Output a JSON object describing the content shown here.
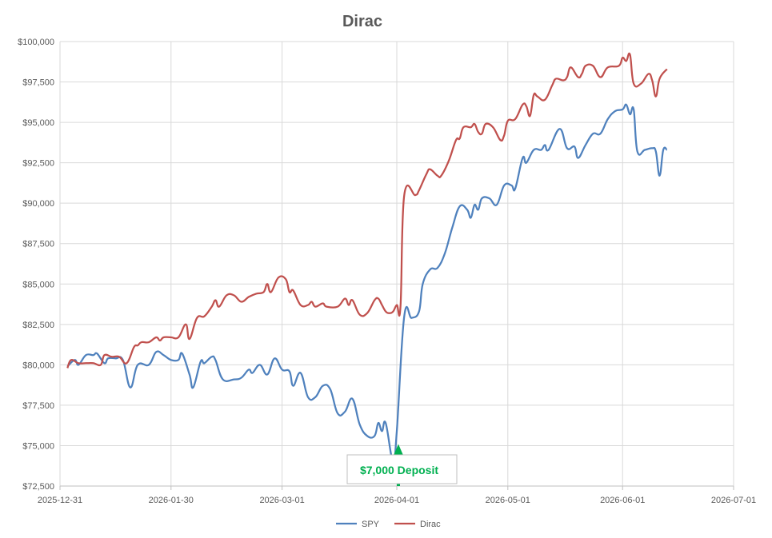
{
  "chart_data": {
    "type": "line",
    "title": "Dirac",
    "xlabel": "",
    "ylabel": "",
    "xlim": [
      "2025-12-31",
      "2026-07-01"
    ],
    "ylim": [
      72500,
      100000
    ],
    "grid": true,
    "legend": "bottom",
    "x_ticks": [
      "2025-12-31",
      "2026-01-30",
      "2026-03-01",
      "2026-04-01",
      "2026-05-01",
      "2026-06-01",
      "2026-07-01"
    ],
    "y_ticks": [
      "$72,500",
      "$75,000",
      "$77,500",
      "$80,000",
      "$82,500",
      "$85,000",
      "$87,500",
      "$90,000",
      "$92,500",
      "$95,000",
      "$97,500",
      "$100,000"
    ],
    "y_tick_values": [
      72500,
      75000,
      77500,
      80000,
      82500,
      85000,
      87500,
      90000,
      92500,
      95000,
      97500,
      100000
    ],
    "series": [
      {
        "name": "SPY",
        "color": "#4f81bd",
        "points": [
          [
            "2026-01-02",
            79900
          ],
          [
            "2026-01-04",
            80300
          ],
          [
            "2026-01-05",
            80000
          ],
          [
            "2026-01-07",
            80600
          ],
          [
            "2026-01-09",
            80600
          ],
          [
            "2026-01-10",
            80700
          ],
          [
            "2026-01-12",
            80100
          ],
          [
            "2026-01-13",
            80400
          ],
          [
            "2026-01-15",
            80400
          ],
          [
            "2026-01-17",
            80300
          ],
          [
            "2026-01-19",
            78600
          ],
          [
            "2026-01-21",
            80000
          ],
          [
            "2026-01-24",
            80000
          ],
          [
            "2026-01-26",
            80800
          ],
          [
            "2026-01-28",
            80600
          ],
          [
            "2026-01-30",
            80300
          ],
          [
            "2026-02-01",
            80300
          ],
          [
            "2026-02-02",
            80700
          ],
          [
            "2026-02-04",
            79400
          ],
          [
            "2026-02-05",
            78600
          ],
          [
            "2026-02-07",
            80200
          ],
          [
            "2026-02-08",
            80100
          ],
          [
            "2026-02-10",
            80500
          ],
          [
            "2026-02-11",
            80300
          ],
          [
            "2026-02-13",
            79100
          ],
          [
            "2026-02-16",
            79100
          ],
          [
            "2026-02-18",
            79200
          ],
          [
            "2026-02-20",
            79700
          ],
          [
            "2026-02-21",
            79500
          ],
          [
            "2026-02-23",
            80000
          ],
          [
            "2026-02-25",
            79400
          ],
          [
            "2026-02-27",
            80400
          ],
          [
            "2026-03-01",
            79700
          ],
          [
            "2026-03-03",
            79600
          ],
          [
            "2026-03-04",
            78700
          ],
          [
            "2026-03-06",
            79500
          ],
          [
            "2026-03-08",
            78000
          ],
          [
            "2026-03-10",
            78000
          ],
          [
            "2026-03-12",
            78700
          ],
          [
            "2026-03-14",
            78500
          ],
          [
            "2026-03-16",
            77000
          ],
          [
            "2026-03-18",
            77100
          ],
          [
            "2026-03-20",
            77900
          ],
          [
            "2026-03-22",
            76300
          ],
          [
            "2026-03-24",
            75600
          ],
          [
            "2026-03-26",
            75600
          ],
          [
            "2026-03-27",
            76400
          ],
          [
            "2026-03-28",
            75900
          ],
          [
            "2026-03-29",
            76400
          ],
          [
            "2026-03-31",
            74000
          ],
          [
            "2026-04-01",
            75900
          ],
          [
            "2026-04-03",
            83000
          ],
          [
            "2026-04-05",
            82900
          ],
          [
            "2026-04-07",
            83300
          ],
          [
            "2026-04-08",
            85000
          ],
          [
            "2026-04-10",
            85900
          ],
          [
            "2026-04-12",
            86000
          ],
          [
            "2026-04-14",
            86900
          ],
          [
            "2026-04-16",
            88500
          ],
          [
            "2026-04-18",
            89800
          ],
          [
            "2026-04-20",
            89600
          ],
          [
            "2026-04-21",
            89100
          ],
          [
            "2026-04-22",
            89900
          ],
          [
            "2026-04-23",
            89600
          ],
          [
            "2026-04-24",
            90300
          ],
          [
            "2026-04-26",
            90300
          ],
          [
            "2026-04-28",
            89900
          ],
          [
            "2026-04-30",
            91100
          ],
          [
            "2026-05-02",
            91100
          ],
          [
            "2026-05-03",
            90900
          ],
          [
            "2026-05-05",
            92800
          ],
          [
            "2026-05-06",
            92500
          ],
          [
            "2026-05-08",
            93300
          ],
          [
            "2026-05-10",
            93300
          ],
          [
            "2026-05-11",
            93600
          ],
          [
            "2026-05-12",
            93300
          ],
          [
            "2026-05-15",
            94600
          ],
          [
            "2026-05-17",
            93400
          ],
          [
            "2026-05-19",
            93500
          ],
          [
            "2026-05-20",
            92800
          ],
          [
            "2026-05-22",
            93600
          ],
          [
            "2026-05-24",
            94300
          ],
          [
            "2026-05-26",
            94300
          ],
          [
            "2026-05-28",
            95200
          ],
          [
            "2026-05-30",
            95700
          ],
          [
            "2026-06-01",
            95800
          ],
          [
            "2026-06-02",
            96100
          ],
          [
            "2026-06-03",
            95500
          ],
          [
            "2026-06-04",
            95800
          ],
          [
            "2026-06-05",
            93200
          ],
          [
            "2026-06-07",
            93300
          ],
          [
            "2026-06-09",
            93400
          ],
          [
            "2026-06-10",
            93200
          ],
          [
            "2026-06-11",
            91700
          ],
          [
            "2026-06-12",
            93300
          ],
          [
            "2026-06-13",
            93300
          ]
        ]
      },
      {
        "name": "Dirac",
        "color": "#c0504d",
        "points": [
          [
            "2026-01-02",
            79800
          ],
          [
            "2026-01-03",
            80300
          ],
          [
            "2026-01-05",
            80100
          ],
          [
            "2026-01-07",
            80100
          ],
          [
            "2026-01-09",
            80100
          ],
          [
            "2026-01-11",
            80000
          ],
          [
            "2026-01-12",
            80600
          ],
          [
            "2026-01-14",
            80500
          ],
          [
            "2026-01-16",
            80500
          ],
          [
            "2026-01-18",
            80100
          ],
          [
            "2026-01-20",
            81100
          ],
          [
            "2026-01-21",
            81200
          ],
          [
            "2026-01-22",
            81400
          ],
          [
            "2026-01-24",
            81400
          ],
          [
            "2026-01-26",
            81700
          ],
          [
            "2026-01-27",
            81500
          ],
          [
            "2026-01-28",
            81700
          ],
          [
            "2026-01-30",
            81700
          ],
          [
            "2026-02-01",
            81700
          ],
          [
            "2026-02-03",
            82500
          ],
          [
            "2026-02-04",
            81600
          ],
          [
            "2026-02-06",
            82900
          ],
          [
            "2026-02-08",
            83000
          ],
          [
            "2026-02-10",
            83600
          ],
          [
            "2026-02-11",
            84000
          ],
          [
            "2026-02-12",
            83600
          ],
          [
            "2026-02-14",
            84300
          ],
          [
            "2026-02-16",
            84300
          ],
          [
            "2026-02-18",
            83900
          ],
          [
            "2026-02-20",
            84200
          ],
          [
            "2026-02-22",
            84400
          ],
          [
            "2026-02-24",
            84500
          ],
          [
            "2026-02-25",
            85000
          ],
          [
            "2026-02-26",
            84500
          ],
          [
            "2026-02-28",
            85400
          ],
          [
            "2026-03-02",
            85300
          ],
          [
            "2026-03-03",
            84500
          ],
          [
            "2026-03-04",
            84600
          ],
          [
            "2026-03-06",
            83700
          ],
          [
            "2026-03-08",
            83700
          ],
          [
            "2026-03-09",
            83900
          ],
          [
            "2026-03-10",
            83600
          ],
          [
            "2026-03-12",
            83800
          ],
          [
            "2026-03-13",
            83600
          ],
          [
            "2026-03-16",
            83600
          ],
          [
            "2026-03-18",
            84100
          ],
          [
            "2026-03-19",
            83700
          ],
          [
            "2026-03-20",
            84000
          ],
          [
            "2026-03-22",
            83100
          ],
          [
            "2026-03-24",
            83200
          ],
          [
            "2026-03-26",
            84000
          ],
          [
            "2026-03-27",
            84100
          ],
          [
            "2026-03-28",
            83700
          ],
          [
            "2026-03-29",
            83300
          ],
          [
            "2026-03-30",
            83200
          ],
          [
            "2026-03-31",
            83300
          ],
          [
            "2026-04-01",
            83700
          ],
          [
            "2026-04-02",
            83600
          ],
          [
            "2026-04-03",
            90500
          ],
          [
            "2026-04-06",
            90500
          ],
          [
            "2026-04-07",
            90800
          ],
          [
            "2026-04-09",
            91800
          ],
          [
            "2026-04-10",
            92100
          ],
          [
            "2026-04-12",
            91700
          ],
          [
            "2026-04-13",
            91700
          ],
          [
            "2026-04-15",
            92600
          ],
          [
            "2026-04-17",
            93900
          ],
          [
            "2026-04-18",
            94000
          ],
          [
            "2026-04-19",
            94700
          ],
          [
            "2026-04-21",
            94700
          ],
          [
            "2026-04-22",
            94900
          ],
          [
            "2026-04-23",
            94400
          ],
          [
            "2026-04-24",
            94300
          ],
          [
            "2026-04-25",
            94900
          ],
          [
            "2026-04-27",
            94700
          ],
          [
            "2026-04-29",
            93900
          ],
          [
            "2026-04-30",
            94200
          ],
          [
            "2026-05-01",
            95100
          ],
          [
            "2026-05-03",
            95200
          ],
          [
            "2026-05-05",
            96100
          ],
          [
            "2026-05-06",
            96000
          ],
          [
            "2026-05-07",
            95400
          ],
          [
            "2026-05-08",
            96700
          ],
          [
            "2026-05-09",
            96600
          ],
          [
            "2026-05-11",
            96400
          ],
          [
            "2026-05-13",
            97300
          ],
          [
            "2026-05-14",
            97700
          ],
          [
            "2026-05-16",
            97600
          ],
          [
            "2026-05-17",
            97800
          ],
          [
            "2026-05-18",
            98400
          ],
          [
            "2026-05-20",
            97800
          ],
          [
            "2026-05-21",
            98000
          ],
          [
            "2026-05-22",
            98500
          ],
          [
            "2026-05-24",
            98500
          ],
          [
            "2026-05-26",
            97800
          ],
          [
            "2026-05-28",
            98400
          ],
          [
            "2026-05-31",
            98500
          ],
          [
            "2026-06-01",
            99000
          ],
          [
            "2026-06-02",
            98800
          ],
          [
            "2026-06-03",
            99200
          ],
          [
            "2026-06-04",
            97400
          ],
          [
            "2026-06-06",
            97400
          ],
          [
            "2026-06-08",
            98000
          ],
          [
            "2026-06-09",
            97600
          ],
          [
            "2026-06-10",
            96600
          ],
          [
            "2026-06-11",
            97700
          ],
          [
            "2026-06-13",
            98300
          ]
        ]
      }
    ],
    "annotations": [
      {
        "text": "$7,000 Deposit",
        "x": "2026-04-01",
        "arrow_from": 72500,
        "arrow_to": 75000,
        "color": "#00b050"
      }
    ]
  }
}
